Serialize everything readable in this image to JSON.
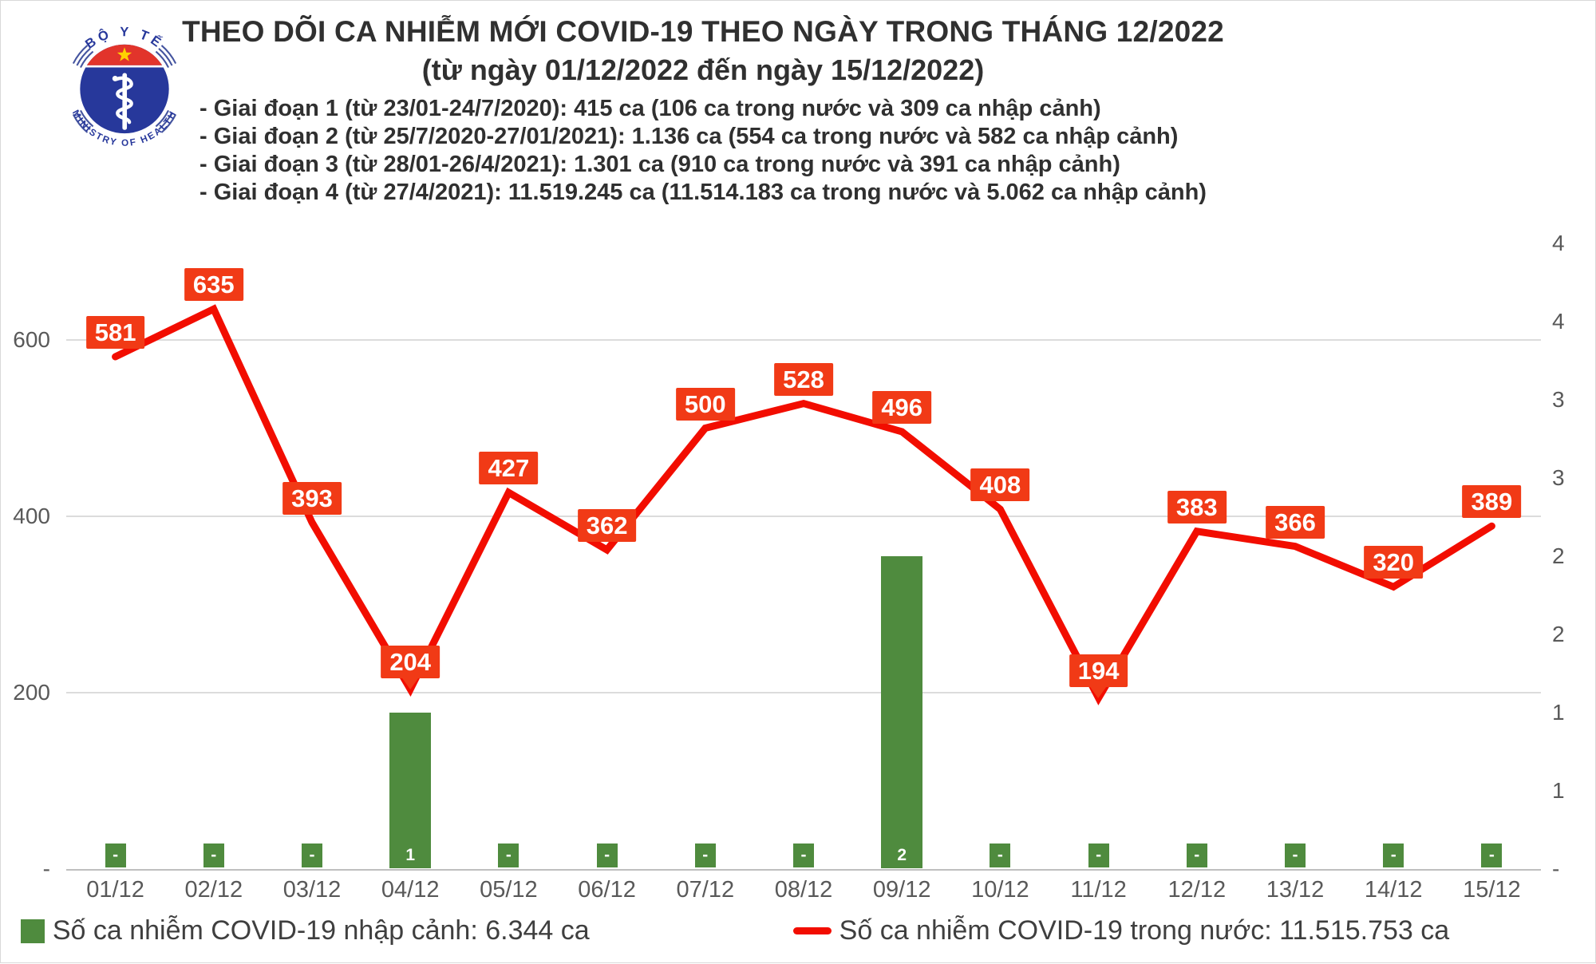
{
  "header": {
    "title": "THEO DÕI CA NHIỄM MỚI COVID-19 THEO NGÀY TRONG THÁNG 12/2022",
    "subtitle": "(từ ngày 01/12/2022 đến ngày 15/12/2022)",
    "bullets": [
      "- Giai đoạn 1 (từ 23/01-24/7/2020): 415 ca (106 ca trong nước và 309 ca nhập cảnh)",
      "- Giai đoạn 2 (từ 25/7/2020-27/01/2021): 1.136 ca (554 ca trong nước và 582 ca nhập cảnh)",
      "- Giai đoạn 3 (từ 28/01-26/4/2021): 1.301 ca (910 ca trong nước và 391 ca nhập cảnh)",
      "- Giai đoạn 4 (từ 27/4/2021): 11.519.245 ca (11.514.183 ca trong nước và 5.062 ca nhập cảnh)"
    ]
  },
  "logo": {
    "top_text": "BỘ Y TẾ",
    "bottom_text": "MINISTRY OF HEALTH",
    "colors": {
      "navy": "#27389b",
      "red": "#e2342b",
      "star_yellow": "#ffd200"
    }
  },
  "chart_data": {
    "type": "combo",
    "categories": [
      "01/12",
      "02/12",
      "03/12",
      "04/12",
      "05/12",
      "06/12",
      "07/12",
      "08/12",
      "09/12",
      "10/12",
      "11/12",
      "12/12",
      "13/12",
      "14/12",
      "15/12"
    ],
    "series": [
      {
        "name": "Số ca nhiễm COVID-19 nhập cảnh",
        "type": "bar",
        "axis": "right",
        "color": "#4f8b3e",
        "values": [
          0,
          0,
          0,
          1,
          0,
          0,
          0,
          0,
          2,
          0,
          0,
          0,
          0,
          0,
          0
        ],
        "labels": [
          "-",
          "-",
          "-",
          "1",
          "-",
          "-",
          "-",
          "-",
          "2",
          "-",
          "-",
          "-",
          "-",
          "-",
          "-"
        ]
      },
      {
        "name": "Số ca nhiễm COVID-19 trong nước",
        "type": "line",
        "axis": "left",
        "color": "#f20d00",
        "label_bg": "#f13a16",
        "values": [
          581,
          635,
          393,
          204,
          427,
          362,
          500,
          528,
          496,
          408,
          194,
          383,
          366,
          320,
          389
        ],
        "callout_indexes": [
          3,
          10
        ]
      }
    ],
    "y_left": {
      "ticks": [
        {
          "label": "600",
          "value": 600
        },
        {
          "label": "400",
          "value": 400
        },
        {
          "label": "200",
          "value": 200
        },
        {
          "label": "-",
          "value": 0
        }
      ],
      "max": 700
    },
    "y_right": {
      "ticks": [
        {
          "label": "4",
          "value": 4
        },
        {
          "label": "4",
          "value": 3.5
        },
        {
          "label": "3",
          "value": 3
        },
        {
          "label": "3",
          "value": 2.5
        },
        {
          "label": "2",
          "value": 2
        },
        {
          "label": "2",
          "value": 1.5
        },
        {
          "label": "1",
          "value": 1
        },
        {
          "label": "1",
          "value": 0.5
        },
        {
          "label": "-",
          "value": 0
        }
      ],
      "max": 4
    },
    "grid": "horizontal",
    "legend_position": "bottom"
  },
  "legend": {
    "items": [
      {
        "label": "Số ca nhiễm COVID-19 nhập cảnh: 6.344 ca",
        "color": "#4f8b3e",
        "marker": "square"
      },
      {
        "label": "Số ca nhiễm COVID-19 trong nước: 11.515.753 ca",
        "color": "#f20d00",
        "marker": "line"
      }
    ]
  }
}
